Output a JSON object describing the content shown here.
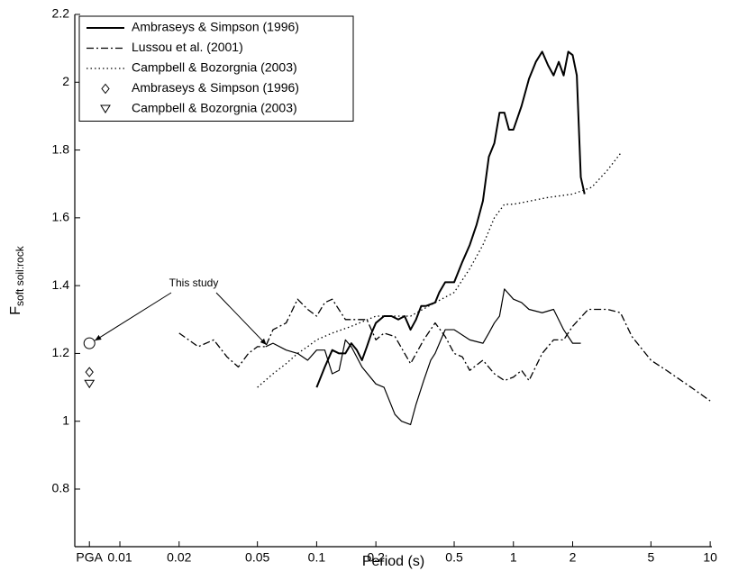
{
  "chart_data": {
    "type": "line",
    "xlabel": "Period (s)",
    "ylabel": "F",
    "ylabel_sub": "soft soil:rock",
    "xscale": "log",
    "xlim": [
      0.0059,
      10.2
    ],
    "ylim": [
      0.63,
      2.2
    ],
    "xticks": [
      {
        "value": 0.007,
        "label": "PGA"
      },
      0.01,
      0.02,
      0.05,
      0.1,
      0.2,
      0.5,
      1,
      2,
      5,
      10
    ],
    "yticks": [
      0.8,
      1,
      1.2,
      1.4,
      1.6,
      1.8,
      2,
      2.2
    ],
    "legend": "upper left",
    "annotation": "This study",
    "series": [
      {
        "name": "Ambraseys & Simpson (1996)",
        "style": "solid",
        "color": "#000000",
        "x": [
          0.1,
          0.11,
          0.12,
          0.13,
          0.14,
          0.15,
          0.16,
          0.17,
          0.18,
          0.19,
          0.2,
          0.22,
          0.24,
          0.26,
          0.28,
          0.3,
          0.32,
          0.34,
          0.36,
          0.4,
          0.42,
          0.45,
          0.5,
          0.55,
          0.6,
          0.65,
          0.7,
          0.75,
          0.8,
          0.85,
          0.9,
          0.95,
          1.0,
          1.1,
          1.2,
          1.3,
          1.4,
          1.5,
          1.6,
          1.7,
          1.8,
          1.9,
          2.0,
          2.1,
          2.2,
          2.3
        ],
        "values": [
          1.1,
          1.16,
          1.21,
          1.2,
          1.2,
          1.23,
          1.21,
          1.18,
          1.22,
          1.26,
          1.29,
          1.31,
          1.31,
          1.3,
          1.31,
          1.27,
          1.3,
          1.34,
          1.34,
          1.35,
          1.38,
          1.41,
          1.41,
          1.47,
          1.52,
          1.58,
          1.65,
          1.78,
          1.82,
          1.91,
          1.91,
          1.86,
          1.86,
          1.93,
          2.01,
          2.06,
          2.09,
          2.05,
          2.02,
          2.06,
          2.02,
          2.09,
          2.08,
          2.02,
          1.72,
          1.67
        ]
      },
      {
        "name": "Lussou et al. (2001)",
        "style": "dashdot",
        "color": "#000000",
        "x": [
          0.02,
          0.025,
          0.03,
          0.035,
          0.04,
          0.045,
          0.05,
          0.055,
          0.06,
          0.07,
          0.08,
          0.09,
          0.1,
          0.11,
          0.12,
          0.14,
          0.16,
          0.18,
          0.2,
          0.22,
          0.25,
          0.28,
          0.3,
          0.35,
          0.4,
          0.45,
          0.5,
          0.55,
          0.6,
          0.7,
          0.8,
          0.9,
          1.0,
          1.1,
          1.2,
          1.4,
          1.6,
          1.8,
          2.0,
          2.4,
          3,
          3.5,
          4,
          5,
          6,
          8,
          10
        ],
        "values": [
          1.26,
          1.22,
          1.24,
          1.19,
          1.16,
          1.2,
          1.22,
          1.22,
          1.27,
          1.29,
          1.36,
          1.33,
          1.31,
          1.35,
          1.36,
          1.3,
          1.3,
          1.3,
          1.24,
          1.26,
          1.25,
          1.2,
          1.17,
          1.24,
          1.29,
          1.25,
          1.2,
          1.19,
          1.15,
          1.18,
          1.14,
          1.12,
          1.13,
          1.15,
          1.12,
          1.2,
          1.24,
          1.24,
          1.28,
          1.33,
          1.33,
          1.32,
          1.25,
          1.18,
          1.15,
          1.1,
          1.06
        ]
      },
      {
        "name": "Campbell & Bozorgnia (2003)",
        "style": "dotted",
        "color": "#000000",
        "x": [
          0.05,
          0.06,
          0.07,
          0.08,
          0.09,
          0.1,
          0.12,
          0.15,
          0.2,
          0.25,
          0.3,
          0.4,
          0.5,
          0.6,
          0.7,
          0.8,
          0.9,
          1.0,
          1.5,
          2,
          2.5,
          3,
          3.5
        ],
        "values": [
          1.1,
          1.14,
          1.17,
          1.2,
          1.22,
          1.24,
          1.26,
          1.28,
          1.31,
          1.31,
          1.31,
          1.35,
          1.38,
          1.45,
          1.52,
          1.6,
          1.64,
          1.64,
          1.66,
          1.67,
          1.69,
          1.74,
          1.79
        ]
      },
      {
        "name": "Ambraseys & Simpson (1996)",
        "style": "none",
        "marker": "diamond",
        "color": "#000000",
        "x": [
          0.007
        ],
        "values": [
          1.145
        ]
      },
      {
        "name": "Campbell & Bozorgnia (2003)",
        "style": "none",
        "marker": "triangle",
        "color": "#000000",
        "x": [
          0.007
        ],
        "values": [
          1.11
        ]
      },
      {
        "style": "thin",
        "color": "#000000",
        "x": [
          0.055,
          0.06,
          0.07,
          0.08,
          0.09,
          0.1,
          0.11,
          0.12,
          0.13,
          0.14,
          0.15,
          0.17,
          0.2,
          0.22,
          0.25,
          0.27,
          0.3,
          0.32,
          0.35,
          0.38,
          0.4,
          0.45,
          0.5,
          0.6,
          0.7,
          0.75,
          0.8,
          0.85,
          0.9,
          1.0,
          1.1,
          1.2,
          1.4,
          1.6,
          1.8,
          2.0,
          2.2
        ],
        "values": [
          1.22,
          1.23,
          1.21,
          1.2,
          1.18,
          1.21,
          1.21,
          1.14,
          1.15,
          1.24,
          1.22,
          1.16,
          1.11,
          1.1,
          1.02,
          1.0,
          0.99,
          1.05,
          1.12,
          1.18,
          1.2,
          1.27,
          1.27,
          1.24,
          1.23,
          1.26,
          1.29,
          1.31,
          1.39,
          1.36,
          1.35,
          1.33,
          1.32,
          1.33,
          1.27,
          1.23,
          1.23
        ]
      },
      {
        "style": "none",
        "marker": "circle",
        "color": "#000000",
        "x": [
          0.007
        ],
        "values": [
          1.23
        ]
      }
    ]
  }
}
